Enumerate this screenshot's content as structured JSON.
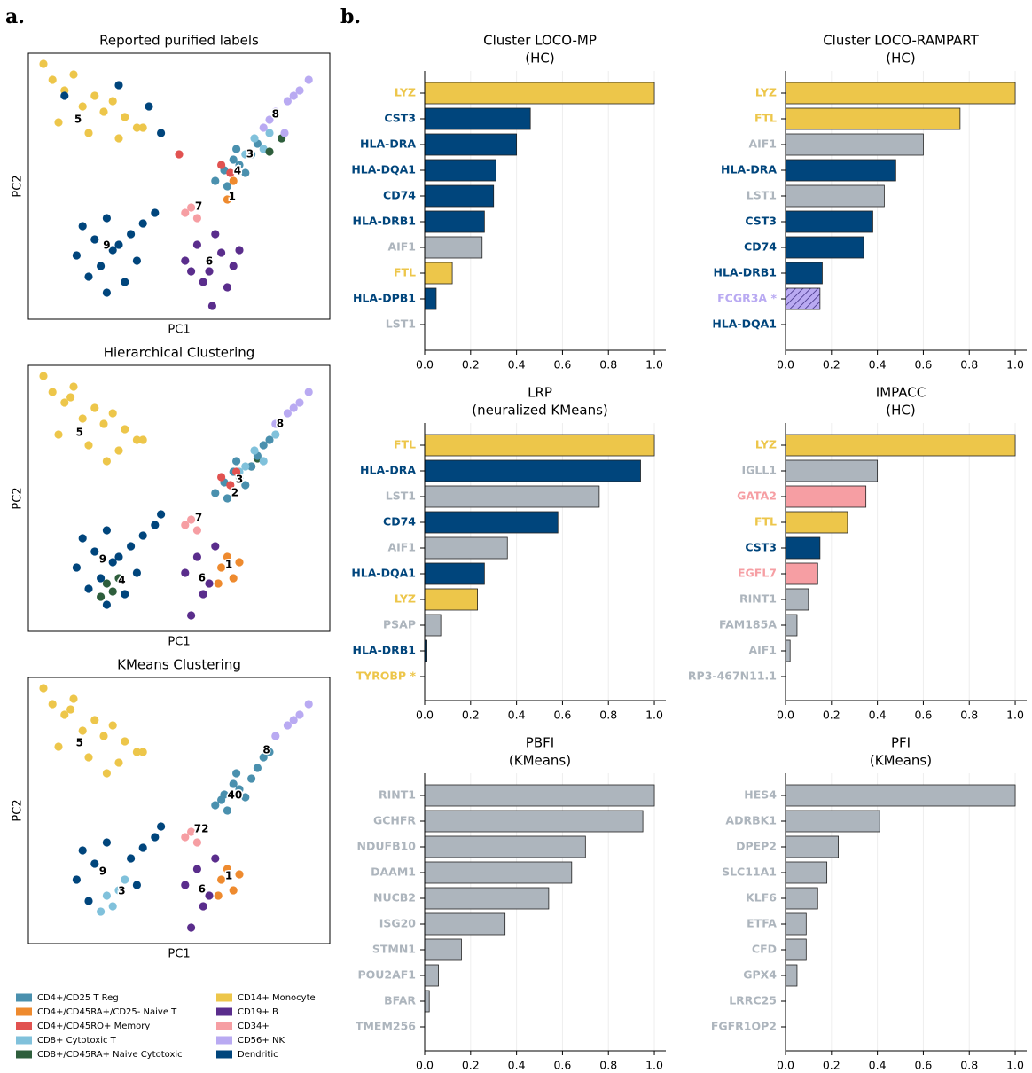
{
  "panel_labels": [
    "a.",
    "b."
  ],
  "chart_data": [
    {
      "type": "scatter",
      "title": "Reported purified labels",
      "xlabel": "PC1",
      "ylabel": "PC2",
      "xlim": [
        0,
        100
      ],
      "ylim": [
        0,
        100
      ],
      "series": [
        {
          "name": "CD4+/CD25 T Reg",
          "color": "#4a90ae",
          "x": [
            62,
            65,
            68,
            70,
            72,
            74,
            66,
            69,
            76
          ],
          "y": [
            52,
            56,
            60,
            58,
            55,
            62,
            50,
            64,
            66
          ]
        },
        {
          "name": "CD4+/CD45RA+/CD25- Naive T",
          "color": "#ee8a2e",
          "x": [
            68,
            66
          ],
          "y": [
            52,
            45
          ]
        },
        {
          "name": "CD4+/CD45RO+ Memory",
          "color": "#e15250",
          "x": [
            50,
            64,
            67
          ],
          "y": [
            62,
            58,
            55
          ]
        },
        {
          "name": "CD8+ Cytotoxic T",
          "color": "#80c1db",
          "x": [
            75,
            78,
            80,
            72
          ],
          "y": [
            68,
            64,
            70,
            62
          ]
        },
        {
          "name": "CD8+/CD45RA+ Naive Cytotoxic",
          "color": "#2e5e3c",
          "x": [
            84,
            80
          ],
          "y": [
            68,
            63
          ]
        },
        {
          "name": "CD14+ Monocyte",
          "color": "#edc64a",
          "x": [
            5,
            8,
            12,
            15,
            18,
            22,
            25,
            28,
            32,
            36,
            10,
            20,
            30,
            38
          ],
          "y": [
            96,
            90,
            86,
            92,
            80,
            84,
            78,
            82,
            76,
            72,
            74,
            70,
            68,
            72
          ]
        },
        {
          "name": "CD19+ B",
          "color": "#5a2d8c",
          "x": [
            52,
            56,
            60,
            64,
            68,
            58,
            62,
            66,
            70,
            54,
            61
          ],
          "y": [
            22,
            28,
            18,
            25,
            20,
            14,
            32,
            12,
            26,
            18,
            5
          ]
        },
        {
          "name": "CD34+",
          "color": "#f69ea3",
          "x": [
            52,
            54,
            56
          ],
          "y": [
            40,
            42,
            38
          ]
        },
        {
          "name": "CD56+ NK",
          "color": "#b9aaf2",
          "x": [
            78,
            82,
            86,
            90,
            93,
            80,
            88,
            85
          ],
          "y": [
            72,
            78,
            82,
            86,
            90,
            75,
            84,
            70
          ]
        },
        {
          "name": "Dendritic",
          "color": "#00457c",
          "x": [
            12,
            30,
            40,
            44,
            18,
            22,
            26,
            30,
            34,
            38,
            16,
            24,
            28,
            36,
            20,
            32,
            42,
            26
          ],
          "y": [
            84,
            88,
            80,
            70,
            35,
            30,
            38,
            28,
            32,
            36,
            24,
            20,
            26,
            22,
            16,
            14,
            40,
            10
          ]
        }
      ],
      "cluster_labels": [
        {
          "text": "5",
          "x": 16.5,
          "y": 75
        },
        {
          "text": "8",
          "x": 82,
          "y": 77
        },
        {
          "text": "3",
          "x": 73.5,
          "y": 62
        },
        {
          "text": "4",
          "x": 69.4,
          "y": 55.7
        },
        {
          "text": "1",
          "x": 67.6,
          "y": 46
        },
        {
          "text": "7",
          "x": 56.5,
          "y": 42.3
        },
        {
          "text": "9",
          "x": 26,
          "y": 27.7
        },
        {
          "text": "6",
          "x": 60,
          "y": 21.7
        }
      ]
    },
    {
      "type": "scatter",
      "title": "Hierarchical Clustering",
      "xlabel": "PC1",
      "ylabel": "PC2",
      "xlim": [
        0,
        100
      ],
      "ylim": [
        0,
        100
      ],
      "series": [
        {
          "color": "#edc64a",
          "x": [
            5,
            8,
            12,
            15,
            18,
            22,
            25,
            28,
            32,
            36,
            10,
            20,
            30,
            38,
            14,
            26
          ],
          "y": [
            96,
            90,
            86,
            92,
            80,
            84,
            78,
            82,
            76,
            72,
            74,
            70,
            68,
            72,
            88,
            64
          ]
        },
        {
          "color": "#00457c",
          "x": [
            18,
            22,
            26,
            30,
            34,
            38,
            16,
            24,
            28,
            36,
            20,
            32,
            42,
            26,
            44
          ],
          "y": [
            35,
            30,
            38,
            28,
            32,
            36,
            24,
            20,
            26,
            22,
            16,
            14,
            40,
            10,
            44
          ]
        },
        {
          "color": "#2e5e3c",
          "x": [
            26,
            28,
            30,
            24,
            74,
            76
          ],
          "y": [
            18,
            15,
            20,
            13,
            62,
            65
          ]
        },
        {
          "color": "#5a2d8c",
          "x": [
            52,
            56,
            60,
            58,
            62,
            54
          ],
          "y": [
            22,
            28,
            18,
            14,
            32,
            6
          ]
        },
        {
          "color": "#ee8a2e",
          "x": [
            64,
            66,
            68,
            70,
            63
          ],
          "y": [
            24,
            28,
            20,
            26,
            18
          ]
        },
        {
          "color": "#4a90ae",
          "x": [
            62,
            65,
            68,
            70,
            72,
            74,
            66,
            69,
            76,
            78,
            80
          ],
          "y": [
            52,
            56,
            60,
            58,
            55,
            62,
            50,
            64,
            66,
            70,
            72
          ]
        },
        {
          "color": "#80c1db",
          "x": [
            75,
            78,
            82,
            72,
            70
          ],
          "y": [
            68,
            64,
            74,
            62,
            60
          ]
        },
        {
          "color": "#b9aaf2",
          "x": [
            82,
            86,
            90,
            93,
            88
          ],
          "y": [
            78,
            82,
            86,
            90,
            84
          ]
        },
        {
          "color": "#e15250",
          "x": [
            64,
            67,
            69
          ],
          "y": [
            58,
            55,
            60
          ]
        },
        {
          "color": "#f69ea3",
          "x": [
            52,
            54,
            56
          ],
          "y": [
            40,
            42,
            38
          ]
        }
      ],
      "cluster_labels": [
        {
          "text": "5",
          "x": 17,
          "y": 74.7
        },
        {
          "text": "8",
          "x": 83.5,
          "y": 78
        },
        {
          "text": "3",
          "x": 70,
          "y": 57
        },
        {
          "text": "2",
          "x": 68.5,
          "y": 52
        },
        {
          "text": "7",
          "x": 56.5,
          "y": 42.7
        },
        {
          "text": "9",
          "x": 24.7,
          "y": 27
        },
        {
          "text": "4",
          "x": 31,
          "y": 19
        },
        {
          "text": "6",
          "x": 57.6,
          "y": 20
        },
        {
          "text": "1",
          "x": 66.5,
          "y": 25
        }
      ]
    },
    {
      "type": "scatter",
      "title": "KMeans Clustering",
      "xlabel": "PC1",
      "ylabel": "PC2",
      "xlim": [
        0,
        100
      ],
      "ylim": [
        0,
        100
      ],
      "series": [
        {
          "color": "#edc64a",
          "x": [
            5,
            8,
            12,
            15,
            18,
            22,
            25,
            28,
            32,
            36,
            10,
            20,
            30,
            38,
            14,
            26
          ],
          "y": [
            96,
            90,
            86,
            92,
            80,
            84,
            78,
            82,
            76,
            72,
            74,
            70,
            68,
            72,
            88,
            64
          ]
        },
        {
          "color": "#00457c",
          "x": [
            18,
            22,
            26,
            34,
            38,
            16,
            20,
            36,
            42,
            44
          ],
          "y": [
            35,
            30,
            38,
            32,
            36,
            24,
            16,
            22,
            40,
            44
          ]
        },
        {
          "color": "#80c1db",
          "x": [
            26,
            30,
            28,
            24,
            32
          ],
          "y": [
            18,
            20,
            14,
            12,
            24
          ]
        },
        {
          "color": "#5a2d8c",
          "x": [
            52,
            56,
            60,
            58,
            62,
            54
          ],
          "y": [
            22,
            28,
            18,
            14,
            32,
            6
          ]
        },
        {
          "color": "#ee8a2e",
          "x": [
            64,
            66,
            68,
            70,
            63
          ],
          "y": [
            24,
            28,
            20,
            26,
            18
          ]
        },
        {
          "color": "#4a90ae",
          "x": [
            62,
            65,
            68,
            70,
            72,
            74,
            66,
            69,
            76,
            78,
            80,
            64
          ],
          "y": [
            52,
            56,
            60,
            58,
            55,
            62,
            50,
            64,
            66,
            70,
            72,
            54
          ]
        },
        {
          "color": "#b9aaf2",
          "x": [
            82,
            86,
            90,
            93,
            88
          ],
          "y": [
            78,
            82,
            86,
            90,
            84
          ]
        },
        {
          "color": "#f69ea3",
          "x": [
            52,
            54,
            56
          ],
          "y": [
            40,
            42,
            38
          ]
        }
      ],
      "cluster_labels": [
        {
          "text": "5",
          "x": 17,
          "y": 75.3
        },
        {
          "text": "8",
          "x": 79,
          "y": 72.7
        },
        {
          "text": "40",
          "x": 68.5,
          "y": 55.7
        },
        {
          "text": "72",
          "x": 57.4,
          "y": 43
        },
        {
          "text": "9",
          "x": 24.7,
          "y": 27
        },
        {
          "text": "3",
          "x": 31,
          "y": 19.7
        },
        {
          "text": "6",
          "x": 57.6,
          "y": 20.3
        },
        {
          "text": "1",
          "x": 66.5,
          "y": 25.3
        }
      ]
    },
    {
      "type": "barh",
      "title": "Cluster LOCO-MP",
      "subtitle": "(HC)",
      "categories": [
        "LYZ",
        "CST3",
        "HLA-DRA",
        "HLA-DQA1",
        "CD74",
        "HLA-DRB1",
        "AIF1",
        "FTL",
        "HLA-DPB1",
        "LST1"
      ],
      "values": [
        1.0,
        0.46,
        0.4,
        0.31,
        0.3,
        0.26,
        0.25,
        0.12,
        0.05,
        0.0
      ],
      "colors": [
        "#edc64a",
        "#00457c",
        "#00457c",
        "#00457c",
        "#00457c",
        "#00457c",
        "#adb5bd",
        "#edc64a",
        "#00457c",
        "#adb5bd"
      ],
      "xlim": [
        0,
        1.05
      ],
      "xticks": [
        {
          "value": 0,
          "label": "0.0"
        },
        0.2,
        0.4,
        0.6,
        0.8,
        {
          "value": 1,
          "label": "1.0"
        }
      ],
      "grid": true
    },
    {
      "type": "barh",
      "title": "Cluster LOCO-RAMPART",
      "subtitle": "(HC)",
      "categories": [
        "LYZ",
        "FTL",
        "AIF1",
        "HLA-DRA",
        "LST1",
        "CST3",
        "CD74",
        "HLA-DRB1",
        "FCGR3A *",
        "HLA-DQA1"
      ],
      "values": [
        1.0,
        0.76,
        0.6,
        0.48,
        0.43,
        0.38,
        0.34,
        0.16,
        0.15,
        0.0
      ],
      "colors": [
        "#edc64a",
        "#edc64a",
        "#adb5bd",
        "#00457c",
        "#adb5bd",
        "#00457c",
        "#00457c",
        "#00457c",
        "#b9aaf2",
        "#00457c"
      ],
      "hatch": [
        false,
        false,
        false,
        false,
        false,
        false,
        false,
        false,
        true,
        false
      ],
      "xlim": [
        0,
        1.05
      ],
      "xticks": [
        {
          "value": 0,
          "label": "0.0"
        },
        0.2,
        0.4,
        0.6,
        0.8,
        {
          "value": 1,
          "label": "1.0"
        }
      ],
      "grid": true
    },
    {
      "type": "barh",
      "title": "LRP",
      "subtitle": "(neuralized KMeans)",
      "categories": [
        "FTL",
        "HLA-DRA",
        "LST1",
        "CD74",
        "AIF1",
        "HLA-DQA1",
        "LYZ",
        "PSAP",
        "HLA-DRB1",
        "TYROBP *"
      ],
      "values": [
        1.0,
        0.94,
        0.76,
        0.58,
        0.36,
        0.26,
        0.23,
        0.07,
        0.01,
        0.0
      ],
      "colors": [
        "#edc64a",
        "#00457c",
        "#adb5bd",
        "#00457c",
        "#adb5bd",
        "#00457c",
        "#edc64a",
        "#adb5bd",
        "#00457c",
        "#edc64a"
      ],
      "xlim": [
        0,
        1.05
      ],
      "xticks": [
        {
          "value": 0,
          "label": "0.0"
        },
        0.2,
        0.4,
        0.6,
        0.8,
        {
          "value": 1,
          "label": "1.0"
        }
      ],
      "grid": true
    },
    {
      "type": "barh",
      "title": "IMPACC",
      "subtitle": "(HC)",
      "categories": [
        "LYZ",
        "IGLL1",
        "GATA2",
        "FTL",
        "CST3",
        "EGFL7",
        "RINT1",
        "FAM185A",
        "AIF1",
        "RP3-467N11.1"
      ],
      "values": [
        1.0,
        0.4,
        0.35,
        0.27,
        0.15,
        0.14,
        0.1,
        0.05,
        0.02,
        0.0
      ],
      "colors": [
        "#edc64a",
        "#adb5bd",
        "#f69ea3",
        "#edc64a",
        "#00457c",
        "#f69ea3",
        "#adb5bd",
        "#adb5bd",
        "#adb5bd",
        "#adb5bd"
      ],
      "xlim": [
        0,
        1.05
      ],
      "xticks": [
        {
          "value": 0,
          "label": "0.0"
        },
        0.2,
        0.4,
        0.6,
        0.8,
        {
          "value": 1,
          "label": "1.0"
        }
      ],
      "grid": true
    },
    {
      "type": "barh",
      "title": "PBFI",
      "subtitle": "(KMeans)",
      "categories": [
        "RINT1",
        "GCHFR",
        "NDUFB10",
        "DAAM1",
        "NUCB2",
        "ISG20",
        "STMN1",
        "POU2AF1",
        "BFAR",
        "TMEM256"
      ],
      "values": [
        1.0,
        0.95,
        0.7,
        0.64,
        0.54,
        0.35,
        0.16,
        0.06,
        0.02,
        0.0
      ],
      "colors": [
        "#adb5bd",
        "#adb5bd",
        "#adb5bd",
        "#adb5bd",
        "#adb5bd",
        "#adb5bd",
        "#adb5bd",
        "#adb5bd",
        "#adb5bd",
        "#adb5bd"
      ],
      "xlim": [
        0,
        1.05
      ],
      "xticks": [
        {
          "value": 0,
          "label": "0.0"
        },
        0.2,
        0.4,
        0.6,
        0.8,
        {
          "value": 1,
          "label": "1.0"
        }
      ],
      "grid": true
    },
    {
      "type": "barh",
      "title": "PFI",
      "subtitle": "(KMeans)",
      "categories": [
        "HES4",
        "ADRBK1",
        "DPEP2",
        "SLC11A1",
        "KLF6",
        "ETFA",
        "CFD",
        "GPX4",
        "LRRC25",
        "FGFR1OP2"
      ],
      "values": [
        1.0,
        0.41,
        0.23,
        0.18,
        0.14,
        0.09,
        0.09,
        0.05,
        0.0,
        0.0
      ],
      "colors": [
        "#adb5bd",
        "#adb5bd",
        "#adb5bd",
        "#adb5bd",
        "#adb5bd",
        "#adb5bd",
        "#adb5bd",
        "#adb5bd",
        "#adb5bd",
        "#adb5bd"
      ],
      "xlim": [
        0,
        1.05
      ],
      "xticks": [
        {
          "value": 0,
          "label": "0.0"
        },
        0.2,
        0.4,
        0.6,
        0.8,
        {
          "value": 1,
          "label": "1.0"
        }
      ],
      "grid": true
    }
  ]
}
